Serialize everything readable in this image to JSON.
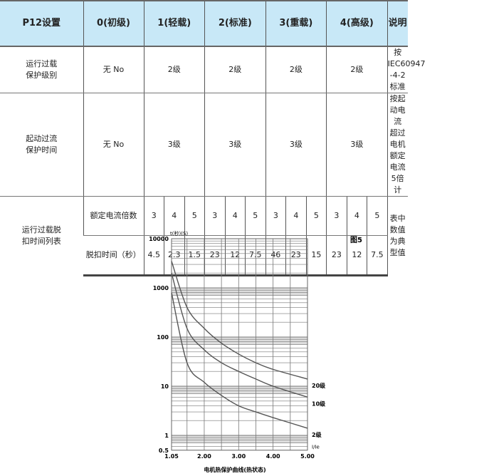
{
  "table": {
    "headers": [
      "P12设置",
      "0(初级)",
      "1(轻载)",
      "2(标准)",
      "3(重载)",
      "4(高级)",
      "说明"
    ],
    "rows": [
      {
        "label": "运行过载\n保护级别",
        "values": [
          "无 No",
          "2级",
          "2级",
          "2级",
          "2级"
        ],
        "note": "按IEC60947\n-4-2标准"
      },
      {
        "label": "起动过流\n保护时间",
        "values": [
          "无 No",
          "3级",
          "3级",
          "3级",
          "3级"
        ],
        "note": "按起动电流\n超过电机额定\n电流5倍计"
      }
    ],
    "trip": {
      "label": "运行过载脱\n扣时间列表",
      "row1_label": "额定电流倍数",
      "row1": [
        "3",
        "4",
        "5",
        "3",
        "4",
        "5",
        "3",
        "4",
        "5",
        "3",
        "4",
        "5"
      ],
      "row2_label": "脱扣时间（秒）",
      "row2": [
        "4.5",
        "2.3",
        "1.5",
        "23",
        "12",
        "7.5",
        "46",
        "23",
        "15",
        "23",
        "12",
        "7.5"
      ],
      "note": "表中数值\n为典型值"
    }
  },
  "chart_data": {
    "type": "line",
    "figure_label": "图5",
    "ylabel": "t(秒)(S)",
    "xlabel": "I/Ie",
    "caption": "电机热保护曲线(热状态)",
    "y_scale": "log",
    "ylim": [
      0.5,
      10000
    ],
    "xlim": [
      1.05,
      5.0
    ],
    "x_ticks": [
      "1.05",
      "2.00",
      "3.00",
      "4.00",
      "5.00"
    ],
    "y_ticks": [
      "10000",
      "1000",
      "100",
      "10",
      "1",
      "0.5"
    ],
    "grid": true,
    "x": [
      1.05,
      1.5,
      2,
      2.5,
      3,
      3.5,
      4,
      5
    ],
    "series": [
      {
        "name": "20级",
        "values": [
          3500,
          400,
          150,
          75,
          45,
          30,
          22,
          14
        ]
      },
      {
        "name": "10级",
        "values": [
          2000,
          150,
          55,
          30,
          20,
          14,
          10,
          6
        ]
      },
      {
        "name": "2级",
        "values": [
          800,
          30,
          12,
          6.5,
          4,
          3,
          2.3,
          1.4
        ]
      }
    ]
  }
}
